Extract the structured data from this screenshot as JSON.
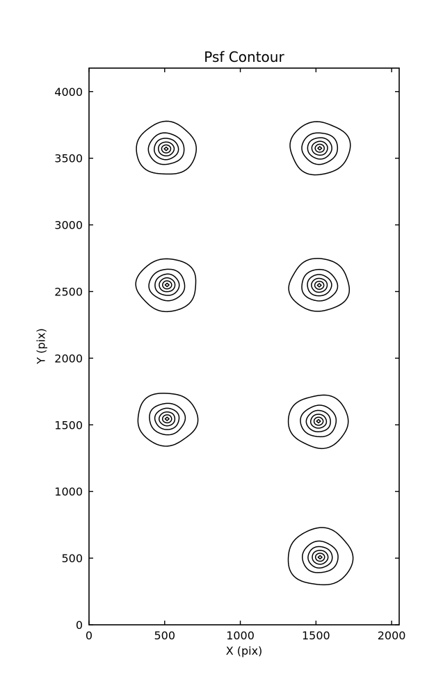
{
  "chart_data": {
    "type": "contour",
    "title": "Psf Contour",
    "xlabel": "X (pix)",
    "ylabel": "Y (pix)",
    "xlim": [
      0,
      2050
    ],
    "ylim": [
      0,
      4176
    ],
    "xticks": [
      0,
      500,
      1000,
      1500,
      2000
    ],
    "xtick_labels": [
      "0",
      "500",
      "1000",
      "1500",
      "2000"
    ],
    "yticks": [
      0,
      500,
      1000,
      1500,
      2000,
      2500,
      3000,
      3500,
      4000
    ],
    "ytick_labels": [
      "0",
      "500",
      "1000",
      "1500",
      "2000",
      "2500",
      "3000",
      "3500",
      "4000"
    ],
    "grid": false,
    "legend": null,
    "line_color": "#000000",
    "background": "#ffffff",
    "psf_centers": [
      {
        "x": 510,
        "y": 3570,
        "scale": 1.0
      },
      {
        "x": 1525,
        "y": 3575,
        "scale": 1.0
      },
      {
        "x": 516,
        "y": 2550,
        "scale": 1.0
      },
      {
        "x": 1522,
        "y": 2547,
        "scale": 1.0
      },
      {
        "x": 516,
        "y": 1545,
        "scale": 1.0
      },
      {
        "x": 1517,
        "y": 1527,
        "scale": 1.0
      },
      {
        "x": 1527,
        "y": 507,
        "scale": 1.08
      }
    ],
    "contour_ring_radii": [
      198,
      118,
      80,
      52,
      30,
      13
    ],
    "levels_per_cluster": 6
  }
}
